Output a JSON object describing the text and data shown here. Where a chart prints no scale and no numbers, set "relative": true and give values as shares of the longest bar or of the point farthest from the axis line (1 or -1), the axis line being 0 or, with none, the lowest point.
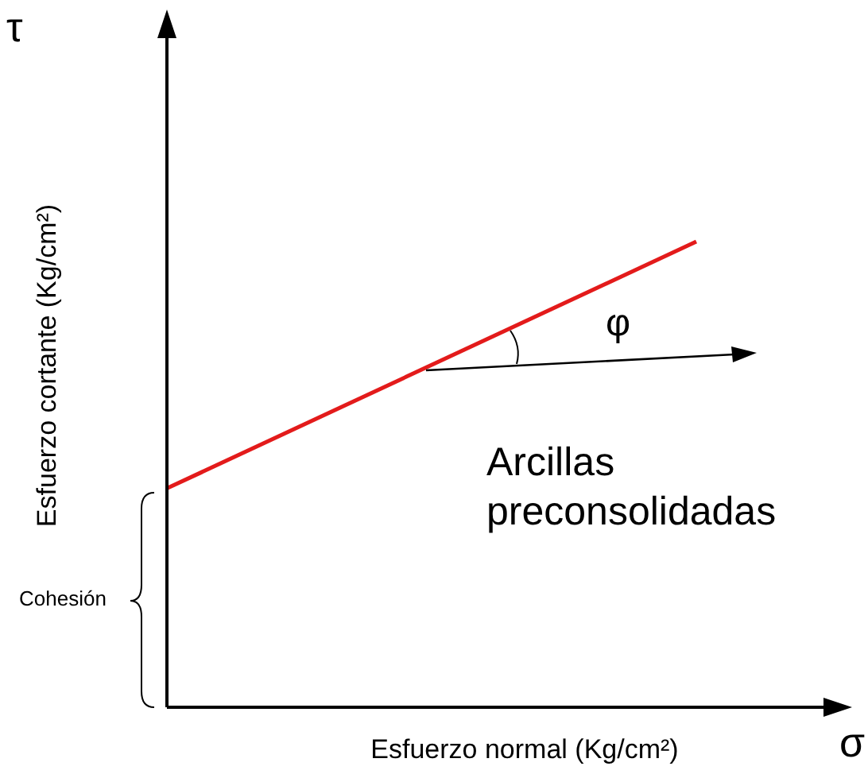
{
  "chart_data": {
    "type": "line",
    "relative": true,
    "categories": [
      null,
      null
    ],
    "xlabel": "Esfuerzo normal (Kg/cm²)",
    "ylabel": "Esfuerzo cortante  (Kg/cm²)",
    "series": [
      {
        "color": "#e31b1b",
        "values": [
          0.47,
          1
        ]
      }
    ],
    "annotations": [
      "τ",
      "σ",
      "Arcillas preconsolidadas",
      "φ",
      "Cohesión"
    ]
  }
}
